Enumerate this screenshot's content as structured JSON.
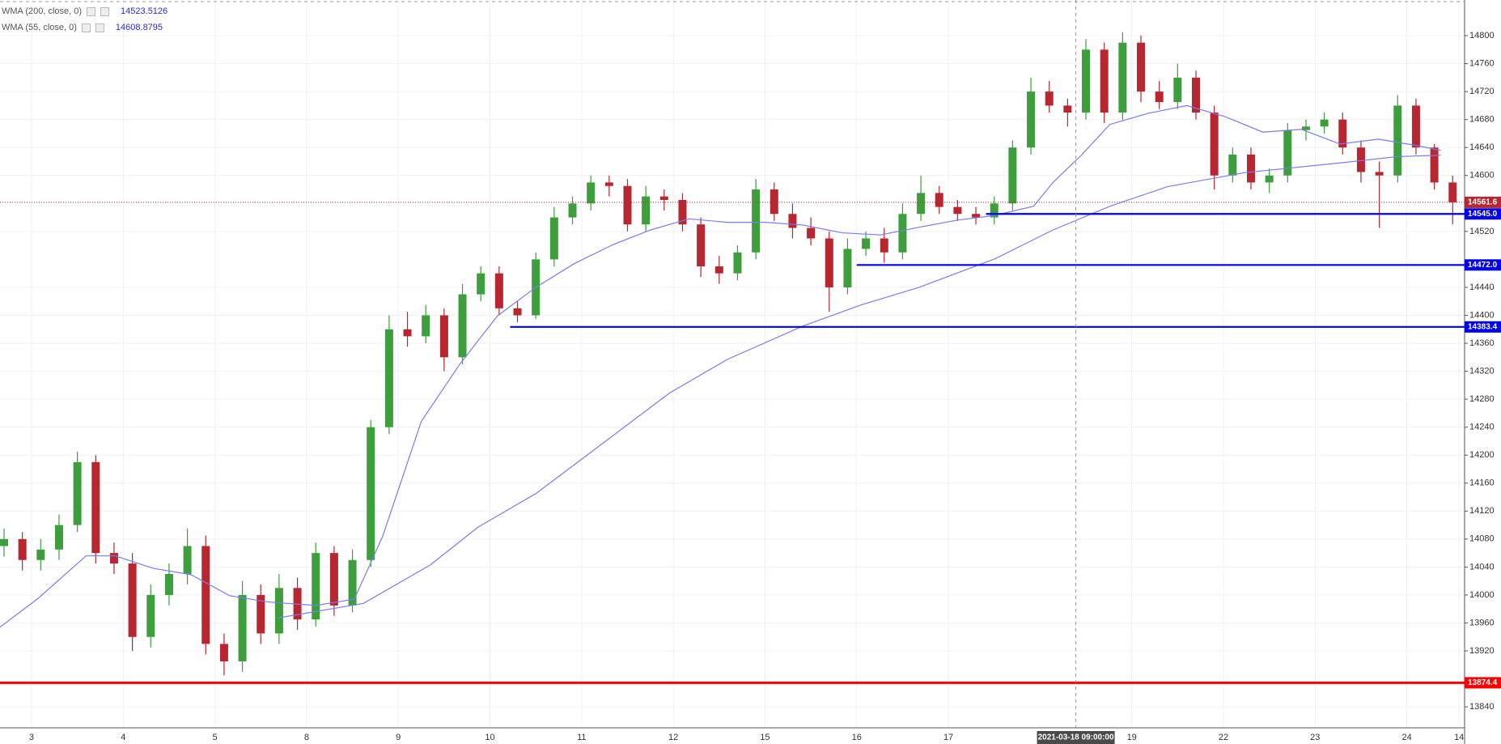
{
  "chart_data": {
    "type": "candlestick",
    "xlim": [
      -0.344,
      15.63
    ],
    "ylim": [
      13810,
      14851
    ],
    "xticks": [
      {
        "value": 0,
        "label": "3"
      },
      {
        "value": 1,
        "label": "4"
      },
      {
        "value": 2,
        "label": "5"
      },
      {
        "value": 3,
        "label": "8"
      },
      {
        "value": 4,
        "label": "9"
      },
      {
        "value": 5,
        "label": "10"
      },
      {
        "value": 6,
        "label": "11"
      },
      {
        "value": 7,
        "label": "12"
      },
      {
        "value": 8,
        "label": "15"
      },
      {
        "value": 9,
        "label": "16"
      },
      {
        "value": 10,
        "label": "17"
      },
      {
        "value": 12,
        "label": "19"
      },
      {
        "value": 13,
        "label": "22"
      },
      {
        "value": 14,
        "label": "23"
      },
      {
        "value": 15,
        "label": "24"
      },
      {
        "value": 15.57,
        "label": "14"
      }
    ],
    "yticks": [
      13840,
      13920,
      13960,
      14000,
      14040,
      14080,
      14120,
      14160,
      14200,
      14240,
      14280,
      14320,
      14360,
      14400,
      14440,
      14520,
      14600,
      14640,
      14680,
      14720,
      14760,
      14800
    ],
    "grid": true,
    "up_color": "#3c9f3c",
    "down_color": "#b8272f",
    "x": [
      -0.3,
      -0.1,
      0.1,
      0.3,
      0.5,
      0.7,
      0.9,
      1.1,
      1.3,
      1.5,
      1.7,
      1.9,
      2.1,
      2.3,
      2.5,
      2.7,
      2.9,
      3.1,
      3.3,
      3.5,
      3.7,
      3.9,
      4.1,
      4.3,
      4.5,
      4.7,
      4.9,
      5.1,
      5.3,
      5.5,
      5.7,
      5.9,
      6.1,
      6.3,
      6.5,
      6.7,
      6.9,
      7.1,
      7.3,
      7.5,
      7.7,
      7.9,
      8.1,
      8.3,
      8.5,
      8.7,
      8.9,
      9.1,
      9.3,
      9.5,
      9.7,
      9.9,
      10.1,
      10.3,
      10.5,
      10.7,
      10.9,
      11.1,
      11.3,
      11.5,
      11.7,
      11.9,
      12.1,
      12.3,
      12.5,
      12.7,
      12.9,
      13.1,
      13.3,
      13.5,
      13.7,
      13.9,
      14.1,
      14.3,
      14.5,
      14.7,
      14.9,
      15.1,
      15.3,
      15.5
    ],
    "open": [
      14070,
      14080,
      14050,
      14065,
      14100,
      14190,
      14060,
      14045,
      13940,
      14000,
      14030,
      14070,
      13930,
      13905,
      14000,
      13945,
      14010,
      13965,
      14060,
      13985,
      14050,
      14240,
      14380,
      14370,
      14400,
      14340,
      14430,
      14460,
      14410,
      14400,
      14480,
      14540,
      14560,
      14590,
      14585,
      14530,
      14570,
      14565,
      14530,
      14470,
      14460,
      14490,
      14580,
      14545,
      14525,
      14510,
      14440,
      14495,
      14510,
      14490,
      14545,
      14575,
      14555,
      14545,
      14540,
      14560,
      14640,
      14720,
      14700,
      14690,
      14780,
      14690,
      14790,
      14720,
      14705,
      14740,
      14690,
      14600,
      14630,
      14590,
      14600,
      14665,
      14670,
      14680,
      14640,
      14605,
      14600,
      14700,
      14640,
      14590
    ],
    "high": [
      14095,
      14090,
      14080,
      14115,
      14205,
      14200,
      14075,
      14060,
      14015,
      14045,
      14095,
      14085,
      13945,
      14020,
      14015,
      14030,
      14025,
      14075,
      14070,
      14065,
      14250,
      14400,
      14405,
      14415,
      14410,
      14445,
      14470,
      14470,
      14420,
      14490,
      14555,
      14570,
      14600,
      14600,
      14595,
      14585,
      14580,
      14575,
      14540,
      14485,
      14500,
      14595,
      14590,
      14560,
      14540,
      14520,
      14510,
      14520,
      14525,
      14560,
      14600,
      14585,
      14565,
      14555,
      14570,
      14650,
      14740,
      14735,
      14710,
      14795,
      14790,
      14805,
      14800,
      14735,
      14760,
      14750,
      14700,
      14640,
      14640,
      14610,
      14675,
      14680,
      14690,
      14690,
      14650,
      14620,
      14715,
      14710,
      14645,
      14600
    ],
    "low": [
      14055,
      14035,
      14035,
      14050,
      14090,
      14045,
      14030,
      13920,
      13925,
      13985,
      14015,
      13915,
      13885,
      13890,
      13930,
      13930,
      13950,
      13955,
      13970,
      13975,
      14040,
      14230,
      14355,
      14360,
      14320,
      14330,
      14420,
      14400,
      14390,
      14395,
      14470,
      14530,
      14550,
      14570,
      14520,
      14520,
      14550,
      14520,
      14455,
      14445,
      14450,
      14480,
      14535,
      14510,
      14500,
      14405,
      14430,
      14485,
      14475,
      14480,
      14535,
      14545,
      14535,
      14530,
      14530,
      14550,
      14630,
      14690,
      14670,
      14680,
      14675,
      14680,
      14705,
      14695,
      14695,
      14680,
      14580,
      14590,
      14580,
      14575,
      14590,
      14650,
      14660,
      14630,
      14590,
      14525,
      14590,
      14630,
      14580,
      14530
    ],
    "close": [
      14080,
      14050,
      14065,
      14100,
      14190,
      14060,
      14045,
      13940,
      14000,
      14030,
      14070,
      13930,
      13905,
      14000,
      13945,
      14010,
      13965,
      14060,
      13985,
      14050,
      14240,
      14380,
      14370,
      14400,
      14340,
      14430,
      14460,
      14410,
      14400,
      14480,
      14540,
      14560,
      14590,
      14585,
      14530,
      14570,
      14565,
      14530,
      14470,
      14460,
      14490,
      14580,
      14545,
      14525,
      14510,
      14440,
      14495,
      14510,
      14490,
      14545,
      14575,
      14555,
      14545,
      14540,
      14560,
      14640,
      14720,
      14700,
      14690,
      14780,
      14690,
      14790,
      14720,
      14705,
      14740,
      14690,
      14600,
      14630,
      14590,
      14600,
      14665,
      14670,
      14680,
      14640,
      14605,
      14600,
      14700,
      14640,
      14590,
      14561.6
    ],
    "series": [
      {
        "name": "WMA (200, close, 0)",
        "color": "#7b7bf0",
        "value_at_cursor": 14523.5126,
        "x": [
          2.68,
          3.62,
          4.35,
          4.87,
          5.5,
          6.13,
          6.96,
          7.59,
          8.42,
          9.05,
          9.68,
          10.51,
          11.14,
          11.76,
          12.39,
          13.23,
          14.27,
          14.9,
          15.37
        ],
        "values": [
          13967,
          13988,
          14043,
          14097,
          14145,
          14207,
          14289,
          14337,
          14385,
          14415,
          14440,
          14481,
          14522,
          14556,
          14584,
          14604,
          14618,
          14627,
          14629
        ]
      },
      {
        "name": "WMA (55, close, 0)",
        "color": "#7b7bf0",
        "value_at_cursor": 14608.8795,
        "x": [
          -0.344,
          0.07,
          0.595,
          0.91,
          1.33,
          1.74,
          2.16,
          2.58,
          3.1,
          3.52,
          3.83,
          4.25,
          4.67,
          5.08,
          5.5,
          5.92,
          6.34,
          6.75,
          7.17,
          7.59,
          8.01,
          8.42,
          8.84,
          9.26,
          9.68,
          10.09,
          10.51,
          10.93,
          11.14,
          11.45,
          11.76,
          12.18,
          12.6,
          13.02,
          13.43,
          13.85,
          14.27,
          14.69,
          15.1,
          15.37
        ],
        "values": [
          13954,
          13995,
          14056,
          14056,
          14038,
          14029,
          13999,
          13990,
          13985,
          13994,
          14084,
          14248,
          14330,
          14399,
          14440,
          14474,
          14501,
          14522,
          14538,
          14533,
          14533,
          14529,
          14518,
          14515,
          14526,
          14536,
          14543,
          14556,
          14590,
          14629,
          14673,
          14689,
          14700,
          14684,
          14662,
          14666,
          14645,
          14652,
          14643,
          14636
        ]
      }
    ],
    "levels": [
      {
        "value": 14545,
        "label": "14545.0",
        "color": "#0000ee",
        "x_start": 10.41
      },
      {
        "value": 14472,
        "label": "14472.0",
        "color": "#0000ee",
        "x_start": 9.0
      },
      {
        "value": 14383.4,
        "label": "14383.4",
        "color": "#0000ee",
        "x_start": 5.22
      },
      {
        "value": 13874.4,
        "label": "13874.4",
        "color": "#ff0000",
        "x_start": -0.344
      }
    ],
    "last_price": {
      "value": 14561.6,
      "color": "#b8272f"
    },
    "crosshair": {
      "x": 11.39,
      "label": "2021-03-18 09:00:00"
    }
  }
}
